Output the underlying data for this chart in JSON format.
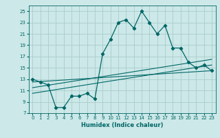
{
  "title": "",
  "xlabel": "Humidex (Indice chaleur)",
  "ylabel": "",
  "xlim": [
    -0.5,
    23.5
  ],
  "ylim": [
    7,
    26
  ],
  "yticks": [
    7,
    9,
    11,
    13,
    15,
    17,
    19,
    21,
    23,
    25
  ],
  "xticks": [
    0,
    1,
    2,
    3,
    4,
    5,
    6,
    7,
    8,
    9,
    10,
    11,
    12,
    13,
    14,
    15,
    16,
    17,
    18,
    19,
    20,
    21,
    22,
    23
  ],
  "bg_color": "#cce8e8",
  "line_color": "#006666",
  "grid_color": "#aacccc",
  "main_line_x": [
    0,
    1,
    2,
    3,
    4,
    5,
    6,
    7,
    8,
    9,
    10,
    11,
    12,
    13,
    14,
    15,
    16,
    17,
    18,
    19,
    20,
    21,
    22,
    23
  ],
  "main_line_y": [
    13,
    12.5,
    12,
    8,
    8,
    10,
    10,
    10.5,
    9.5,
    17.5,
    20,
    23,
    23.5,
    22,
    25,
    23,
    21,
    22.5,
    18.5,
    18.5,
    16,
    15,
    15.5,
    14.5
  ],
  "line1_x": [
    0,
    23
  ],
  "line1_y": [
    10.5,
    15.5
  ],
  "line2_x": [
    0,
    23
  ],
  "line2_y": [
    11.5,
    16.5
  ],
  "line3_x": [
    0,
    23
  ],
  "line3_y": [
    12.5,
    14.5
  ]
}
